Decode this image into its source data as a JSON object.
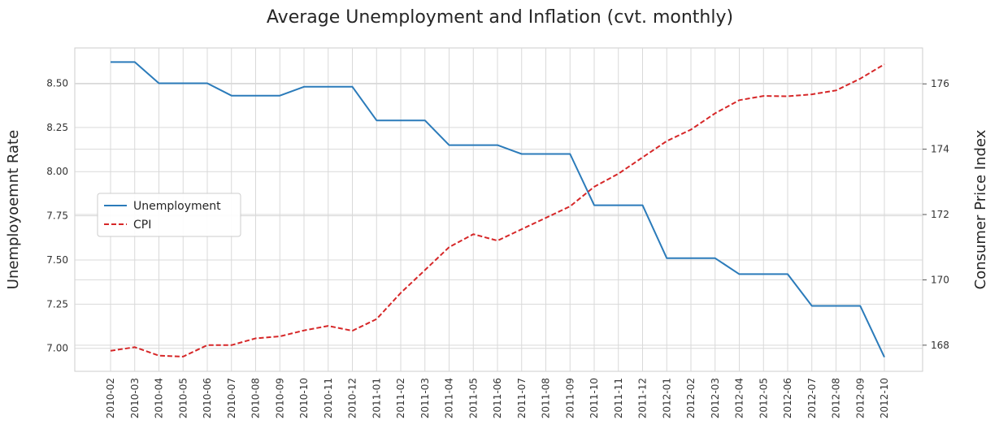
{
  "chart_data": {
    "type": "line",
    "title": "Average Unemployment and Inflation (cvt. monthly)",
    "ylabel_left": "Unemployoemnt Rate",
    "ylabel_right": "Consumer Price Index",
    "x": [
      "2010-02",
      "2010-03",
      "2010-04",
      "2010-05",
      "2010-06",
      "2010-07",
      "2010-08",
      "2010-09",
      "2010-10",
      "2010-11",
      "2010-12",
      "2011-01",
      "2011-02",
      "2011-03",
      "2011-04",
      "2011-05",
      "2011-06",
      "2011-07",
      "2011-08",
      "2011-09",
      "2011-10",
      "2011-11",
      "2011-12",
      "2012-01",
      "2012-02",
      "2012-03",
      "2012-04",
      "2012-05",
      "2012-06",
      "2012-07",
      "2012-08",
      "2012-09",
      "2012-10"
    ],
    "yticks_left": [
      "7.00",
      "7.25",
      "7.50",
      "7.75",
      "8.00",
      "8.25",
      "8.50"
    ],
    "yticks_right": [
      "168",
      "170",
      "172",
      "174",
      "176"
    ],
    "ylim_left": [
      6.87,
      8.7
    ],
    "ylim_right": [
      167.2,
      177.1
    ],
    "grid": true,
    "legend_position": "center-left",
    "series": [
      {
        "name": "Unemployment",
        "axis": "left",
        "color": "#2b7bba",
        "style": "solid",
        "values": [
          8.62,
          8.62,
          8.5,
          8.5,
          8.5,
          8.43,
          8.43,
          8.43,
          8.48,
          8.48,
          8.48,
          8.29,
          8.29,
          8.29,
          8.15,
          8.15,
          8.15,
          8.1,
          8.1,
          8.1,
          7.81,
          7.81,
          7.81,
          7.51,
          7.51,
          7.51,
          7.42,
          7.42,
          7.42,
          7.24,
          7.24,
          7.24,
          6.95
        ]
      },
      {
        "name": "CPI",
        "axis": "right",
        "color": "#d62728",
        "style": "dashed",
        "values": [
          167.83,
          167.94,
          167.68,
          167.65,
          168.0,
          168.0,
          168.21,
          168.27,
          168.45,
          168.59,
          168.44,
          168.8,
          169.6,
          170.3,
          171.0,
          171.4,
          171.2,
          171.55,
          171.9,
          172.25,
          172.85,
          173.25,
          173.75,
          174.25,
          174.6,
          175.1,
          175.5,
          175.63,
          175.62,
          175.68,
          175.8,
          176.16,
          176.6
        ]
      }
    ]
  }
}
